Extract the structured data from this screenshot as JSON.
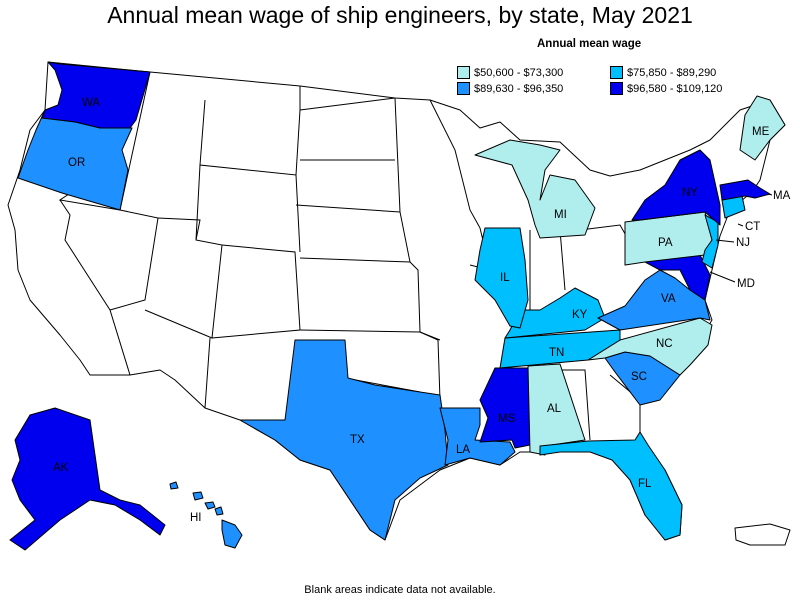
{
  "title": "Annual mean wage of ship engineers, by state, May 2021",
  "legend": {
    "title": "Annual mean wage",
    "items": [
      {
        "label": "$50,600 - $73,300",
        "color": "#b0eeee"
      },
      {
        "label": "$75,850 - $89,290",
        "color": "#00bfff"
      },
      {
        "label": "$89,630 - $96,350",
        "color": "#1e90ff"
      },
      {
        "label": "$96,580 - $109,120",
        "color": "#0000ee"
      }
    ]
  },
  "note": "Blank areas indicate data not available.",
  "states": {
    "WA": {
      "label": "WA",
      "tier": 3
    },
    "OR": {
      "label": "OR",
      "tier": 2
    },
    "AK": {
      "label": "AK",
      "tier": 3
    },
    "HI": {
      "label": "HI",
      "tier": 2
    },
    "TX": {
      "label": "TX",
      "tier": 2
    },
    "LA": {
      "label": "LA",
      "tier": 2
    },
    "MS": {
      "label": "MS",
      "tier": 3
    },
    "AL": {
      "label": "AL",
      "tier": 0
    },
    "FL": {
      "label": "FL",
      "tier": 1
    },
    "SC": {
      "label": "SC",
      "tier": 2
    },
    "NC": {
      "label": "NC",
      "tier": 0
    },
    "TN": {
      "label": "TN",
      "tier": 1
    },
    "KY": {
      "label": "KY",
      "tier": 1
    },
    "VA": {
      "label": "VA",
      "tier": 2
    },
    "MD": {
      "label": "MD",
      "tier": 3
    },
    "IL": {
      "label": "IL",
      "tier": 1
    },
    "MI": {
      "label": "MI",
      "tier": 0
    },
    "PA": {
      "label": "PA",
      "tier": 0
    },
    "NJ": {
      "label": "NJ",
      "tier": 1
    },
    "NY": {
      "label": "NY",
      "tier": 3
    },
    "CT": {
      "label": "CT",
      "tier": 1
    },
    "MA": {
      "label": "MA",
      "tier": 3
    },
    "ME": {
      "label": "ME",
      "tier": 0
    }
  }
}
